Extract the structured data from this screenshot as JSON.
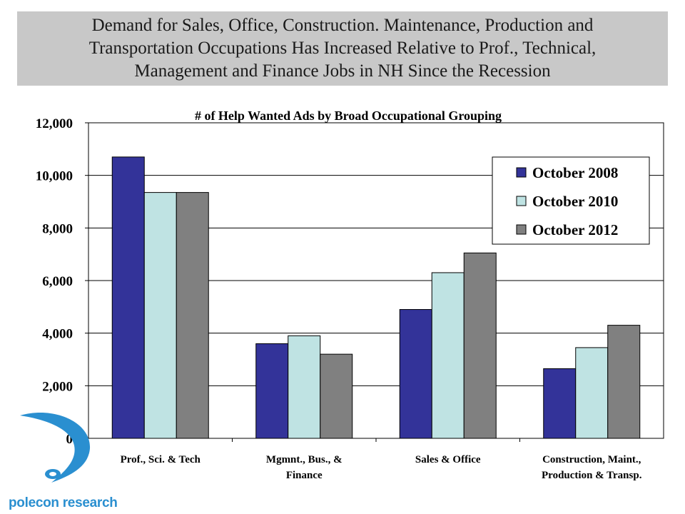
{
  "header": {
    "title": "Demand for Sales, Office, Construction. Maintenance, Production and Transportation Occupations Has Increased Relative to Prof., Technical, Management and Finance Jobs in NH Since the Recession"
  },
  "logo": {
    "text": "polecon research"
  },
  "colors": {
    "series": [
      "#333399",
      "#bfe3e3",
      "#808080"
    ],
    "header_bg": "#c8c8c8",
    "logo": "#2a8fd0"
  },
  "chart_data": {
    "type": "bar",
    "title": "# of Help Wanted Ads by Broad Occupational Grouping",
    "categories": [
      [
        "Prof., Sci. & Tech"
      ],
      [
        "Mgmnt., Bus., &",
        "Finance"
      ],
      [
        "Sales & Office"
      ],
      [
        "Construction, Maint.,",
        "Production & Transp."
      ]
    ],
    "series": [
      {
        "name": "October 2008",
        "values": [
          10700,
          3600,
          4900,
          2650
        ]
      },
      {
        "name": "October 2010",
        "values": [
          9350,
          3900,
          6300,
          3450
        ]
      },
      {
        "name": "October 2012",
        "values": [
          9350,
          3200,
          7050,
          4300
        ]
      }
    ],
    "ylim": [
      0,
      12000
    ],
    "yticks": [
      0,
      2000,
      4000,
      6000,
      8000,
      10000,
      12000
    ],
    "ytick_labels": [
      "0",
      "2,000",
      "4,000",
      "6,000",
      "8,000",
      "10,000",
      "12,000"
    ],
    "grid": true,
    "legend": "top-right"
  }
}
